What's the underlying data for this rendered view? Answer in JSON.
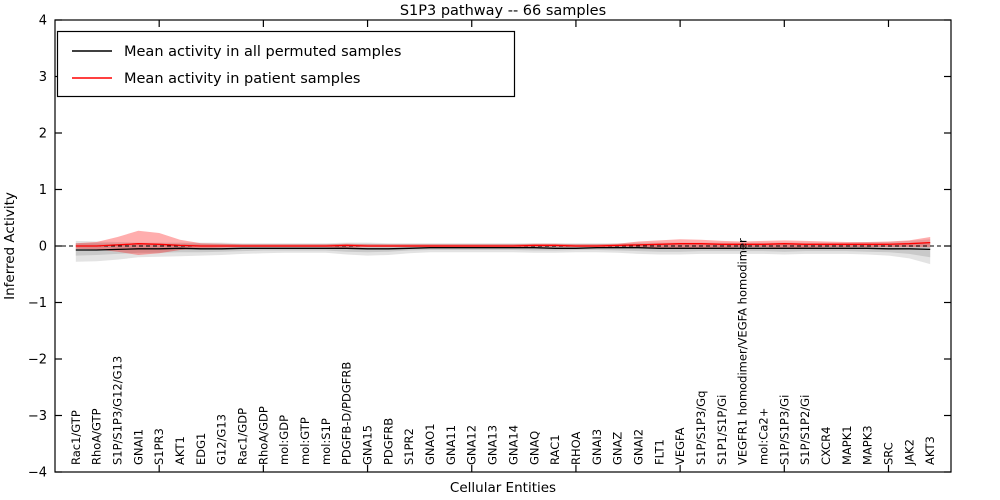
{
  "chart_data": {
    "type": "line",
    "title": "S1P3 pathway -- 66 samples",
    "xlabel": "Cellular Entities",
    "ylabel": "Inferred Activity",
    "ylim": [
      -4,
      4
    ],
    "xlim": [
      0,
      43
    ],
    "yticks": [
      -4,
      -3,
      -2,
      -1,
      0,
      1,
      2,
      3,
      4
    ],
    "xtick_marks": [
      5,
      10,
      15,
      20,
      25,
      30,
      35,
      40
    ],
    "grid": false,
    "legend_position": "upper left",
    "legend": [
      {
        "label": "Mean activity in all permuted samples",
        "color": "#000000"
      },
      {
        "label": "Mean activity in patient samples",
        "color": "#ff0000"
      }
    ],
    "zero_reference_line": 0,
    "categories": [
      "Rac1/GTP",
      "RhoA/GTP",
      "S1P/S1P3/G12/G13",
      "GNAI1",
      "S1PR3",
      "AKT1",
      "EDG1",
      "G12/G13",
      "Rac1/GDP",
      "RhoA/GDP",
      "mol:GDP",
      "mol:GTP",
      "mol:S1P",
      "PDGFB-D/PDGFRB",
      "GNA15",
      "PDGFRB",
      "S1PR2",
      "GNAO1",
      "GNA11",
      "GNA12",
      "GNA13",
      "GNA14",
      "GNAQ",
      "RAC1",
      "RHOA",
      "GNAI3",
      "GNAZ",
      "GNAI2",
      "FLT1",
      "VEGFA",
      "S1P/S1P3/Gq",
      "S1P1/S1P/Gi",
      "VEGFR1 homodimer/VEGFA homodimer",
      "mol:Ca2+",
      "S1P/S1P3/Gi",
      "S1P/S1P2/Gi",
      "CXCR4",
      "MAPK1",
      "MAPK3",
      "SRC",
      "JAK2",
      "AKT3"
    ],
    "series": [
      {
        "name": "Mean activity in all permuted samples",
        "color": "#000000",
        "style": "solid",
        "values": [
          -0.07,
          -0.07,
          -0.06,
          -0.05,
          -0.05,
          -0.04,
          -0.05,
          -0.05,
          -0.04,
          -0.04,
          -0.04,
          -0.04,
          -0.04,
          -0.04,
          -0.05,
          -0.05,
          -0.04,
          -0.03,
          -0.03,
          -0.03,
          -0.03,
          -0.03,
          -0.03,
          -0.04,
          -0.04,
          -0.03,
          -0.03,
          -0.03,
          -0.04,
          -0.04,
          -0.04,
          -0.04,
          -0.04,
          -0.04,
          -0.04,
          -0.04,
          -0.04,
          -0.04,
          -0.04,
          -0.05,
          -0.05,
          -0.06
        ]
      },
      {
        "name": "Mean activity in patient samples",
        "color": "#ff0000",
        "style": "solid",
        "values": [
          0.0,
          0.0,
          0.02,
          0.04,
          0.03,
          0.01,
          0.0,
          0.0,
          0.0,
          0.0,
          0.0,
          0.0,
          0.0,
          0.01,
          0.0,
          0.0,
          0.0,
          0.0,
          0.0,
          0.0,
          0.0,
          0.0,
          0.01,
          0.01,
          0.0,
          0.0,
          0.01,
          0.02,
          0.03,
          0.04,
          0.04,
          0.03,
          0.03,
          0.03,
          0.04,
          0.03,
          0.03,
          0.03,
          0.03,
          0.03,
          0.04,
          0.06
        ]
      }
    ],
    "bands": [
      {
        "name": "permuted-std-outer",
        "color": "#999999",
        "opacity": 0.28,
        "upper": [
          0.09,
          0.08,
          0.07,
          0.06,
          0.06,
          0.06,
          0.06,
          0.06,
          0.05,
          0.05,
          0.05,
          0.05,
          0.05,
          0.06,
          0.06,
          0.05,
          0.05,
          0.05,
          0.05,
          0.05,
          0.05,
          0.05,
          0.05,
          0.05,
          0.05,
          0.05,
          0.05,
          0.06,
          0.06,
          0.06,
          0.06,
          0.06,
          0.06,
          0.06,
          0.06,
          0.06,
          0.06,
          0.06,
          0.07,
          0.07,
          0.09,
          0.12
        ],
        "lower": [
          -0.28,
          -0.27,
          -0.24,
          -0.2,
          -0.19,
          -0.18,
          -0.17,
          -0.16,
          -0.14,
          -0.13,
          -0.12,
          -0.12,
          -0.12,
          -0.15,
          -0.17,
          -0.16,
          -0.13,
          -0.11,
          -0.11,
          -0.11,
          -0.11,
          -0.11,
          -0.12,
          -0.12,
          -0.11,
          -0.11,
          -0.12,
          -0.14,
          -0.15,
          -0.15,
          -0.14,
          -0.14,
          -0.14,
          -0.14,
          -0.15,
          -0.14,
          -0.14,
          -0.14,
          -0.15,
          -0.17,
          -0.22,
          -0.32
        ]
      },
      {
        "name": "permuted-std-inner",
        "color": "#999999",
        "opacity": 0.35,
        "upper": [
          0.05,
          0.05,
          0.04,
          0.04,
          0.04,
          0.04,
          0.04,
          0.04,
          0.03,
          0.03,
          0.03,
          0.03,
          0.03,
          0.04,
          0.04,
          0.03,
          0.03,
          0.03,
          0.03,
          0.03,
          0.03,
          0.03,
          0.03,
          0.03,
          0.03,
          0.03,
          0.03,
          0.04,
          0.04,
          0.04,
          0.04,
          0.04,
          0.04,
          0.04,
          0.04,
          0.04,
          0.04,
          0.04,
          0.04,
          0.04,
          0.05,
          0.07
        ],
        "lower": [
          -0.17,
          -0.16,
          -0.14,
          -0.12,
          -0.12,
          -0.11,
          -0.11,
          -0.1,
          -0.09,
          -0.08,
          -0.08,
          -0.08,
          -0.08,
          -0.1,
          -0.11,
          -0.1,
          -0.08,
          -0.07,
          -0.07,
          -0.07,
          -0.07,
          -0.07,
          -0.08,
          -0.08,
          -0.07,
          -0.07,
          -0.08,
          -0.09,
          -0.1,
          -0.1,
          -0.09,
          -0.09,
          -0.09,
          -0.09,
          -0.1,
          -0.09,
          -0.09,
          -0.09,
          -0.1,
          -0.11,
          -0.14,
          -0.2
        ]
      },
      {
        "name": "patient-std",
        "color": "#ff0000",
        "opacity": 0.32,
        "upper": [
          0.05,
          0.07,
          0.16,
          0.27,
          0.23,
          0.11,
          0.05,
          0.04,
          0.03,
          0.03,
          0.03,
          0.03,
          0.03,
          0.04,
          0.03,
          0.03,
          0.03,
          0.03,
          0.03,
          0.03,
          0.03,
          0.03,
          0.04,
          0.04,
          0.03,
          0.03,
          0.04,
          0.08,
          0.1,
          0.12,
          0.11,
          0.09,
          0.08,
          0.09,
          0.1,
          0.09,
          0.08,
          0.07,
          0.07,
          0.08,
          0.1,
          0.16
        ],
        "lower": [
          -0.05,
          -0.06,
          -0.1,
          -0.16,
          -0.13,
          -0.07,
          -0.04,
          -0.03,
          -0.02,
          -0.02,
          -0.02,
          -0.02,
          -0.02,
          -0.03,
          -0.02,
          -0.02,
          -0.02,
          -0.02,
          -0.02,
          -0.02,
          -0.02,
          -0.02,
          -0.02,
          -0.02,
          -0.02,
          -0.02,
          -0.02,
          -0.03,
          -0.03,
          -0.03,
          -0.03,
          -0.03,
          -0.02,
          -0.02,
          -0.03,
          -0.03,
          -0.02,
          -0.02,
          -0.02,
          -0.02,
          -0.02,
          -0.02
        ]
      }
    ]
  }
}
